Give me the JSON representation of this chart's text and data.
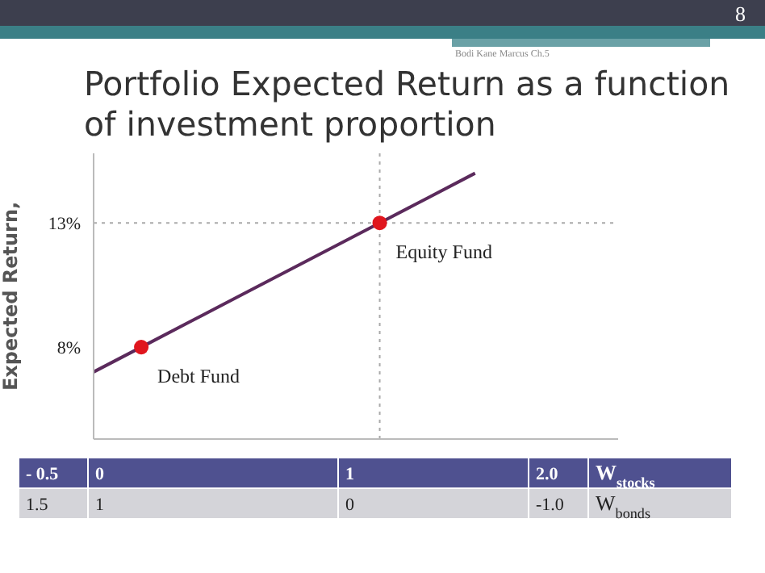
{
  "chart_data": {
    "type": "line",
    "title": "Portfolio Expected Return as a function of investment proportion",
    "ylabel": "Expected  Return,",
    "categories": [
      null,
      null,
      null,
      null,
      null,
      null,
      null,
      null,
      null,
      null,
      null,
      null
    ],
    "ylim": [
      4.3,
      15.8
    ],
    "yticks": [
      {
        "value": 8,
        "label": "8%"
      },
      {
        "value": 13,
        "label": "13%"
      }
    ],
    "tick_labels": "y",
    "legend": false,
    "series": [
      {
        "color": "#5b2a5c",
        "values": [
          7,
          8,
          9,
          10,
          11,
          12,
          13,
          14,
          15,
          null,
          null,
          null
        ],
        "marker": "none",
        "line_style": "solid"
      },
      {
        "type": "scatter",
        "color": "#e0161e",
        "values": [
          null,
          8,
          null,
          null,
          null,
          null,
          13,
          null,
          null,
          null,
          null,
          null
        ],
        "marker": "circle"
      }
    ],
    "ref_lines": [
      {
        "axis": "y",
        "value": 13,
        "color": "#aaaaaa",
        "line_style": "dotted"
      }
    ],
    "annotations": [
      "Debt Fund",
      "Equity Fund",
      "Bodi Kane Marcus Ch.5",
      "8",
      "- 0.5",
      "0",
      "1",
      "2.0",
      "W$_{stocks}$",
      "1.5",
      "1",
      "0",
      "-1.0",
      "W$_{bonds}$"
    ]
  }
}
